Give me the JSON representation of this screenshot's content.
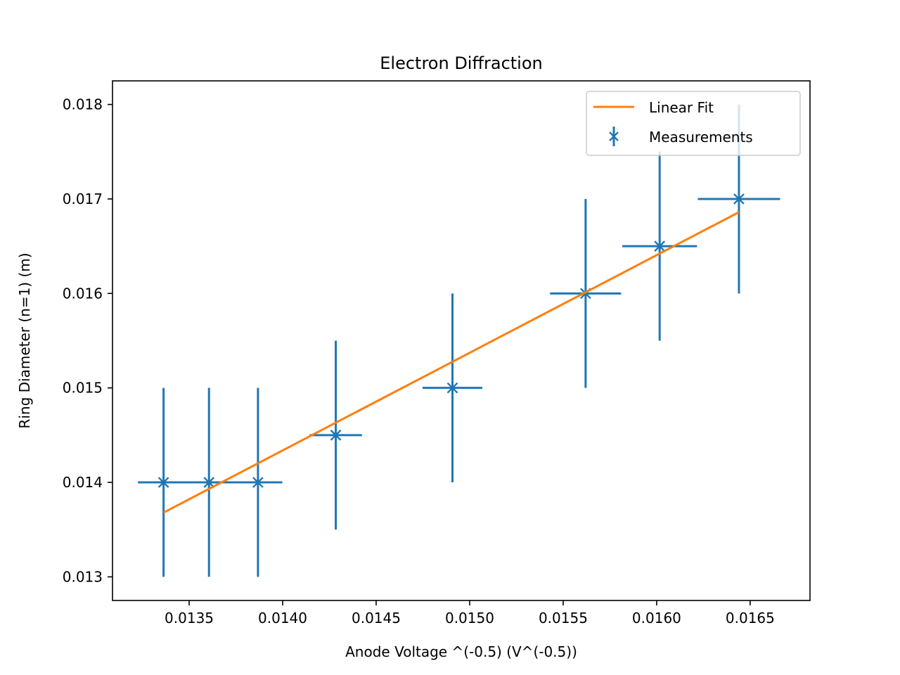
{
  "chart_data": {
    "type": "scatter",
    "title": "Electron Diffraction",
    "xlabel": "Anode Voltage ^(-0.5) (V^(-0.5))",
    "ylabel": "Ring Diameter (n=1) (m)",
    "xlim": [
      0.01309,
      0.01682
    ],
    "ylim": [
      0.01275,
      0.01825
    ],
    "xticks": [
      0.0135,
      0.014,
      0.0145,
      0.015,
      0.0155,
      0.016,
      0.0165
    ],
    "xtick_labels": [
      "0.0135",
      "0.0140",
      "0.0145",
      "0.0150",
      "0.0155",
      "0.0160",
      "0.0165"
    ],
    "yticks": [
      0.013,
      0.014,
      0.015,
      0.016,
      0.017,
      0.018
    ],
    "ytick_labels": [
      "0.013",
      "0.014",
      "0.015",
      "0.016",
      "0.017",
      "0.018"
    ],
    "grid": false,
    "legend_position": "upper right",
    "series": [
      {
        "name": "Linear Fit",
        "kind": "line",
        "color": "#ff7f0e",
        "x": [
          0.013363,
          0.01644
        ],
        "y": [
          0.01368,
          0.01686
        ]
      },
      {
        "name": "Measurements",
        "kind": "errorbar",
        "marker": "x",
        "color": "#1f77b4",
        "points": [
          {
            "x": 0.013363,
            "y": 0.014,
            "xerr": 0.00012,
            "yerr": 0.001
          },
          {
            "x": 0.013606,
            "y": 0.014,
            "xerr": 0.00038,
            "yerr": 0.001
          },
          {
            "x": 0.013868,
            "y": 0.014,
            "xerr": 0.00013,
            "yerr": 0.001
          },
          {
            "x": 0.014284,
            "y": 0.0145,
            "xerr": 0.00014,
            "yerr": 0.001
          },
          {
            "x": 0.014908,
            "y": 0.015,
            "xerr": 0.00016,
            "yerr": 0.001
          },
          {
            "x": 0.01562,
            "y": 0.016,
            "xerr": 0.00019,
            "yerr": 0.001
          },
          {
            "x": 0.016016,
            "y": 0.0165,
            "xerr": 0.0002,
            "yerr": 0.001
          },
          {
            "x": 0.01644,
            "y": 0.017,
            "xerr": 0.00022,
            "yerr": 0.001
          }
        ]
      }
    ]
  }
}
